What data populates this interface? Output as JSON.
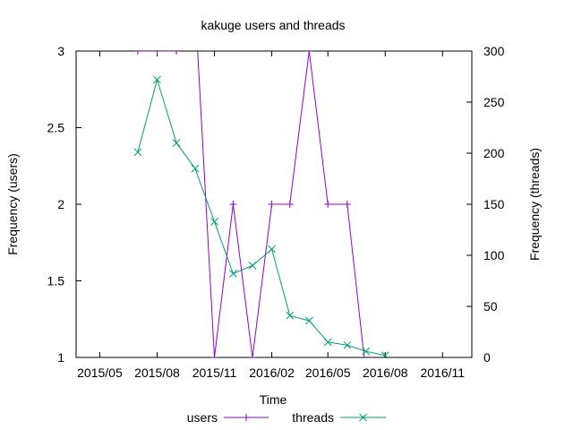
{
  "chart_data": {
    "type": "line",
    "title": "kakuge users and threads",
    "xlabel": "Time",
    "ylabel": "Frequency (users)",
    "y2label": "Frequency (threads)",
    "xticks": [
      "2015/05",
      "2015/08",
      "2015/11",
      "2016/02",
      "2016/05",
      "2016/08",
      "2016/11"
    ],
    "xrange": [
      "2015-03-24",
      "2016-12-18"
    ],
    "yrange": [
      1,
      3
    ],
    "yticks": [
      "1",
      "1.5",
      "2",
      "2.5",
      "3"
    ],
    "y2range": [
      0,
      300
    ],
    "y2ticks": [
      "0",
      "50",
      "100",
      "150",
      "200",
      "250",
      "300"
    ],
    "grid": false,
    "legend_position": "bottom-center",
    "series": [
      {
        "name": "users",
        "axis": "y",
        "color": "#9400d3",
        "marker": "plus",
        "points": [
          {
            "x": "2015-07-01",
            "y": 3
          },
          {
            "x": "2015-08-01",
            "y": 3
          },
          {
            "x": "2015-09-01",
            "y": 3
          },
          {
            "x": "2015-10-01",
            "y": 3.3
          },
          {
            "x": "2015-11-01",
            "y": 1
          },
          {
            "x": "2015-12-01",
            "y": 2
          },
          {
            "x": "2016-01-01",
            "y": 1
          },
          {
            "x": "2016-02-01",
            "y": 2
          },
          {
            "x": "2016-03-01",
            "y": 2
          },
          {
            "x": "2016-04-01",
            "y": 3
          },
          {
            "x": "2016-05-01",
            "y": 2
          },
          {
            "x": "2016-06-01",
            "y": 2
          },
          {
            "x": "2016-07-01",
            "y": 0.9
          }
        ]
      },
      {
        "name": "threads",
        "axis": "y2",
        "color": "#009e73",
        "marker": "cross",
        "points": [
          {
            "x": "2015-07-01",
            "y": 201
          },
          {
            "x": "2015-08-01",
            "y": 272
          },
          {
            "x": "2015-09-01",
            "y": 210
          },
          {
            "x": "2015-10-01",
            "y": 185
          },
          {
            "x": "2015-11-01",
            "y": 133
          },
          {
            "x": "2015-12-01",
            "y": 82
          },
          {
            "x": "2016-01-01",
            "y": 90
          },
          {
            "x": "2016-02-01",
            "y": 106
          },
          {
            "x": "2016-03-01",
            "y": 41
          },
          {
            "x": "2016-04-01",
            "y": 36
          },
          {
            "x": "2016-05-01",
            "y": 15
          },
          {
            "x": "2016-06-01",
            "y": 12
          },
          {
            "x": "2016-07-01",
            "y": 6
          },
          {
            "x": "2016-08-01",
            "y": 2
          }
        ]
      }
    ]
  }
}
